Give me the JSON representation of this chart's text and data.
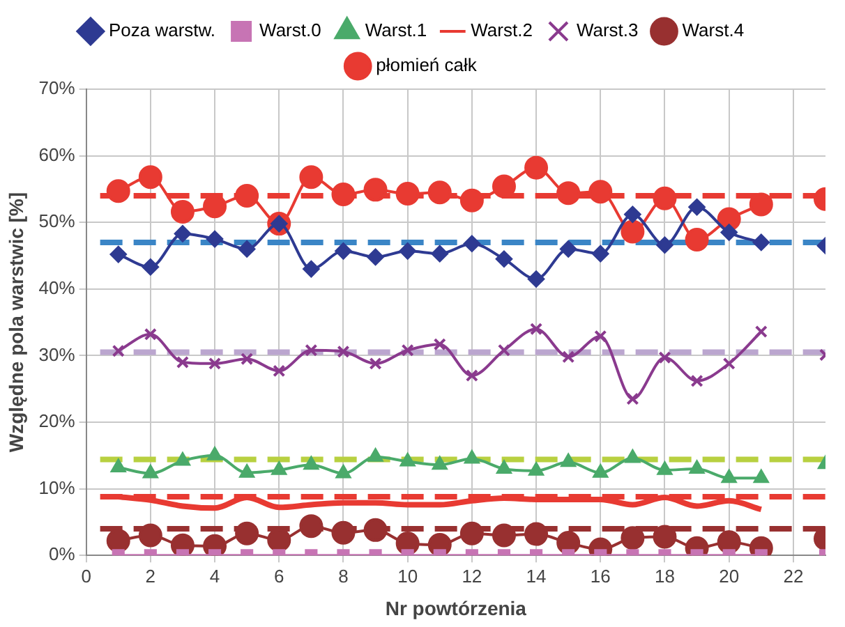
{
  "chart_data": {
    "type": "line",
    "xlabel": "Nr powtórzenia",
    "ylabel": "Względne pola warstwic [%]",
    "x": [
      1,
      2,
      3,
      4,
      5,
      6,
      7,
      8,
      9,
      10,
      11,
      12,
      13,
      14,
      15,
      16,
      17,
      18,
      19,
      20,
      21,
      22,
      23
    ],
    "xlim": [
      0,
      23
    ],
    "xticks": [
      0,
      2,
      4,
      6,
      8,
      10,
      12,
      14,
      16,
      18,
      20,
      22
    ],
    "ylim": [
      0,
      70
    ],
    "yticks": [
      {
        "value": 0,
        "label": "0%"
      },
      {
        "value": 10,
        "label": "10%"
      },
      {
        "value": 20,
        "label": "20%"
      },
      {
        "value": 30,
        "label": "30%"
      },
      {
        "value": 40,
        "label": "40%"
      },
      {
        "value": 50,
        "label": "50%"
      },
      {
        "value": 60,
        "label": "60%"
      },
      {
        "value": 70,
        "label": "70%"
      }
    ],
    "grid": true,
    "legend": "top",
    "series": [
      {
        "name": "Poza warstw.",
        "color": "#2e3a92",
        "marker": "diamond",
        "values": [
          45.2,
          43.3,
          48.3,
          47.5,
          46.0,
          49.8,
          43.0,
          45.7,
          44.8,
          45.7,
          45.3,
          46.8,
          44.5,
          41.5,
          46.0,
          45.3,
          51.2,
          46.6,
          52.3,
          48.5,
          47.0,
          null,
          46.5
        ]
      },
      {
        "name": "Warst.0",
        "color": "#c774b4",
        "marker": "square",
        "values": [
          0,
          0,
          0,
          0,
          0,
          0,
          0,
          0,
          0,
          0,
          0,
          0,
          0,
          0,
          0,
          0,
          0,
          0,
          0,
          0,
          0,
          null,
          0
        ]
      },
      {
        "name": "Warst.1",
        "color": "#4aaa6a",
        "marker": "triangle",
        "values": [
          13.2,
          12.3,
          14.2,
          15.0,
          12.4,
          12.8,
          13.6,
          12.3,
          14.8,
          14.1,
          13.6,
          14.5,
          13.0,
          12.7,
          14.0,
          12.4,
          14.6,
          12.8,
          13.0,
          11.6,
          11.6,
          null,
          13.7
        ]
      },
      {
        "name": "Warst.2",
        "color": "#e83a32",
        "marker": "none",
        "values": [
          8.8,
          8.3,
          7.4,
          7.1,
          8.7,
          7.2,
          7.6,
          7.9,
          7.9,
          7.6,
          7.6,
          8.2,
          8.6,
          8.4,
          8.4,
          8.4,
          7.6,
          8.7,
          7.4,
          8.2,
          6.9,
          null,
          null
        ]
      },
      {
        "name": "Warst.3",
        "color": "#8a3a8e",
        "marker": "cross",
        "values": [
          30.7,
          33.2,
          29.0,
          28.8,
          29.5,
          27.7,
          30.8,
          30.6,
          28.8,
          30.8,
          31.7,
          27.0,
          30.8,
          34.0,
          29.8,
          32.9,
          23.5,
          29.7,
          26.2,
          28.8,
          33.6,
          null,
          30.1
        ]
      },
      {
        "name": "Warst.4",
        "color": "#983030",
        "marker": "circle",
        "values": [
          2.2,
          3.0,
          1.5,
          1.4,
          3.3,
          2.3,
          4.4,
          3.4,
          3.8,
          1.8,
          1.6,
          3.3,
          3.0,
          3.2,
          1.9,
          0.9,
          2.6,
          2.8,
          1.1,
          2.0,
          1.1,
          null,
          2.5
        ]
      },
      {
        "name": "płomień całk",
        "color": "#e83a32",
        "marker": "circle",
        "values": [
          54.7,
          56.8,
          51.6,
          52.4,
          54.0,
          49.8,
          56.8,
          54.2,
          54.9,
          54.3,
          54.5,
          53.3,
          55.4,
          58.2,
          54.4,
          54.6,
          48.6,
          53.6,
          47.4,
          50.5,
          52.7,
          null,
          53.5
        ]
      }
    ],
    "ref_lines": [
      {
        "axis": "y",
        "value": 47,
        "color": "#3a85c6",
        "line_style": "dashed"
      },
      {
        "axis": "y",
        "value": 54,
        "color": "#e83a32",
        "line_style": "dashed"
      },
      {
        "axis": "y",
        "value": 30.5,
        "color": "#bba6cf",
        "line_style": "dashed"
      },
      {
        "axis": "y",
        "value": 14.4,
        "color": "#b8d040",
        "line_style": "dashed"
      },
      {
        "axis": "y",
        "value": 8.8,
        "color": "#e83a32",
        "line_style": "dashed"
      },
      {
        "axis": "y",
        "value": 4.0,
        "color": "#983030",
        "line_style": "dashed"
      }
    ]
  }
}
